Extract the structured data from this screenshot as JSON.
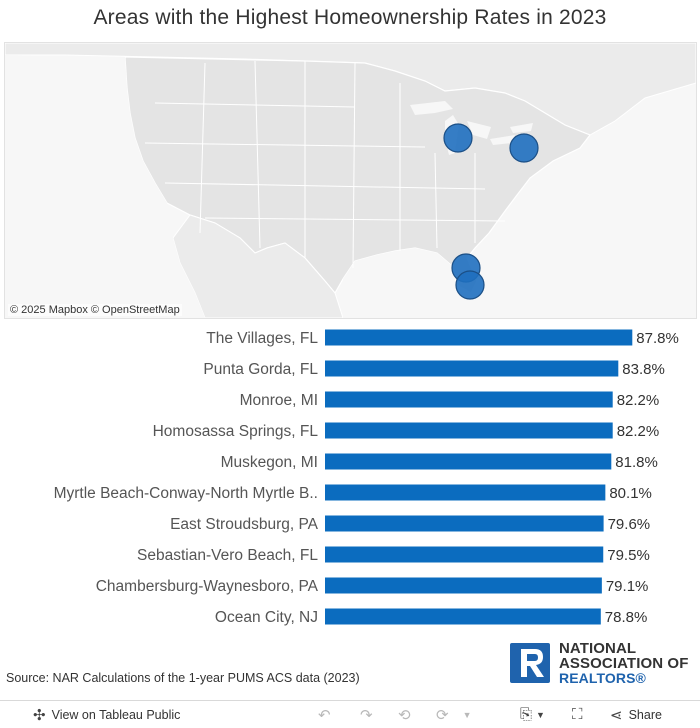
{
  "title": "Areas with the Highest Homeownership Rates in 2023",
  "map": {
    "attribution": "© 2025 Mapbox © OpenStreetMap",
    "land_color": "#e6e6e6",
    "water_color": "#f7f7f7",
    "marker_color": "#1f6fbf"
  },
  "chart_data": {
    "type": "bar",
    "orientation": "horizontal",
    "categories": [
      "The Villages, FL",
      "Punta Gorda, FL",
      "Monroe, MI",
      "Homosassa Springs, FL",
      "Muskegon, MI",
      "Myrtle Beach-Conway-North Myrtle B..",
      "East Stroudsburg, PA",
      "Sebastian-Vero Beach, FL",
      "Chambersburg-Waynesboro, PA",
      "Ocean City, NJ"
    ],
    "values": [
      87.8,
      83.8,
      82.2,
      82.2,
      81.8,
      80.1,
      79.6,
      79.5,
      79.1,
      78.8
    ],
    "value_labels": [
      "87.8%",
      "83.8%",
      "82.2%",
      "82.2%",
      "81.8%",
      "80.1%",
      "79.6%",
      "79.5%",
      "79.1%",
      "78.8%"
    ],
    "xlim": [
      0,
      100
    ],
    "bar_color": "#0b6cbf",
    "grid": false,
    "title": "",
    "xlabel": "",
    "ylabel": ""
  },
  "source": "Source: NAR Calculations of the 1-year PUMS ACS data (2023)",
  "logo": {
    "line1": "NATIONAL",
    "line2": "ASSOCIATION OF",
    "line3": "REALTORS®",
    "brand_color": "#1f63ad"
  },
  "toolbar": {
    "view_label": "View on Tableau Public",
    "share_label": "Share"
  }
}
